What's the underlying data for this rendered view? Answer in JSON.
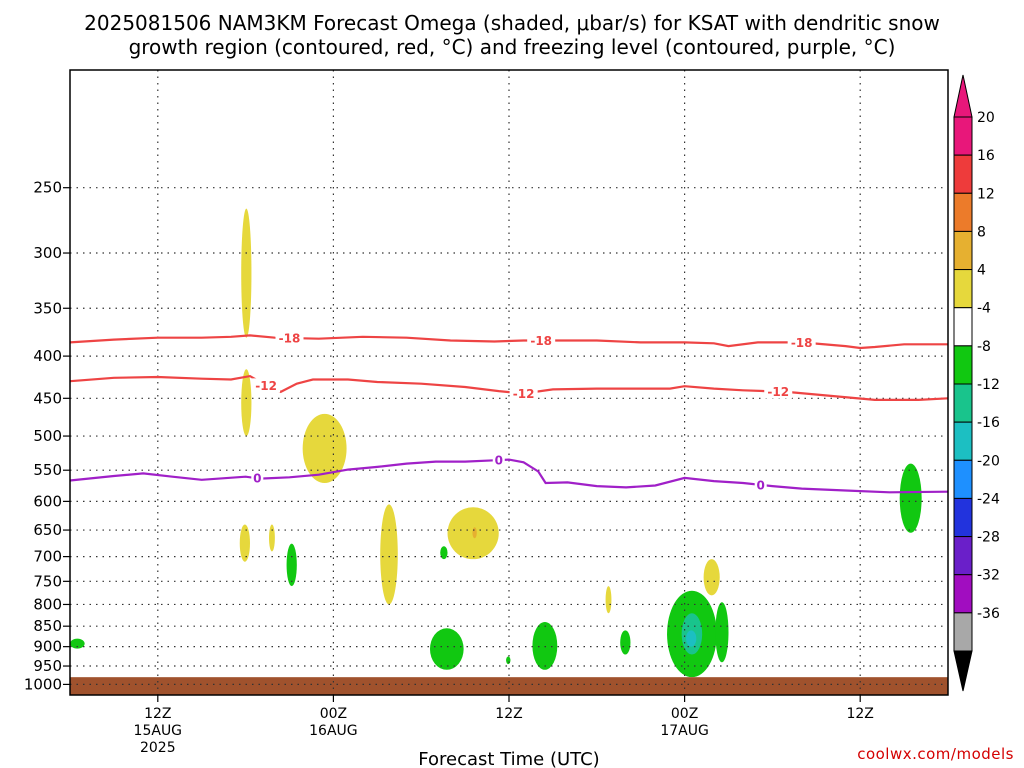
{
  "chart_data": {
    "type": "heatmap",
    "title_line1": "2025081506 NAM3KM Forecast Omega (shaded, μbar/s) for KSAT with dendritic snow",
    "title_line2": "growth region (contoured, red, °C) and freezing level (contoured, purple, °C)",
    "xlabel": "Forecast Time (UTC)",
    "ylabel": "",
    "credit": "coolwx.com/models",
    "x_range_hours": [
      0,
      60
    ],
    "y_axis": {
      "scale": "log-pressure",
      "range_hpa": [
        1030,
        180
      ],
      "ticks": [
        250,
        300,
        350,
        400,
        450,
        500,
        550,
        600,
        650,
        700,
        750,
        800,
        850,
        900,
        950,
        1000
      ],
      "grid": "dotted"
    },
    "x_ticks": [
      {
        "hour": 6,
        "line1": "12Z",
        "line2": "15AUG",
        "line3": "2025"
      },
      {
        "hour": 18,
        "line1": "00Z",
        "line2": "16AUG",
        "line3": ""
      },
      {
        "hour": 30,
        "line1": "12Z",
        "line2": "",
        "line3": ""
      },
      {
        "hour": 42,
        "line1": "00Z",
        "line2": "17AUG",
        "line3": ""
      },
      {
        "hour": 54,
        "line1": "12Z",
        "line2": "",
        "line3": ""
      }
    ],
    "colorbar": {
      "levels": [
        {
          "label": "20",
          "color": "#e8177a"
        },
        {
          "label": "16",
          "color": "#ee3b3b"
        },
        {
          "label": "12",
          "color": "#ec7b2a"
        },
        {
          "label": "8",
          "color": "#e6b030"
        },
        {
          "label": "4",
          "color": "#e6d83c"
        },
        {
          "label": "-4",
          "color": "#ffffff"
        },
        {
          "label": "-8",
          "color": "#11c811"
        },
        {
          "label": "-12",
          "color": "#19c48c"
        },
        {
          "label": "-16",
          "color": "#1cbfc2"
        },
        {
          "label": "-20",
          "color": "#1e90ff"
        },
        {
          "label": "-24",
          "color": "#2233dd"
        },
        {
          "label": "-28",
          "color": "#6a1fc9"
        },
        {
          "label": "-32",
          "color": "#a10dc0"
        },
        {
          "label": "-36",
          "color": "#a8a8a8"
        }
      ],
      "top_arrow_color": "#e8177a",
      "bottom_arrow_color": "#000000"
    },
    "contours": [
      {
        "label": "-18",
        "color": "#ee4444",
        "label_hours": [
          15,
          32.2,
          50
        ],
        "points": [
          [
            0,
            385
          ],
          [
            3,
            382
          ],
          [
            6,
            380
          ],
          [
            9,
            380
          ],
          [
            11,
            379
          ],
          [
            12.3,
            377.5
          ],
          [
            14,
            380
          ],
          [
            17,
            381
          ],
          [
            20,
            379
          ],
          [
            23,
            380
          ],
          [
            26,
            383
          ],
          [
            29,
            384
          ],
          [
            31,
            383
          ],
          [
            33,
            383
          ],
          [
            36,
            383
          ],
          [
            39,
            385
          ],
          [
            42,
            385
          ],
          [
            44,
            386
          ],
          [
            45,
            389
          ],
          [
            47,
            385
          ],
          [
            50,
            385
          ],
          [
            53,
            389
          ],
          [
            54,
            391
          ],
          [
            55,
            390
          ],
          [
            57,
            387
          ],
          [
            60,
            387
          ]
        ]
      },
      {
        "label": "-12",
        "color": "#ee4444",
        "label_hours": [
          13.4,
          31,
          48.4
        ],
        "points": [
          [
            0,
            429
          ],
          [
            3,
            425
          ],
          [
            6,
            424
          ],
          [
            9,
            426
          ],
          [
            11,
            427
          ],
          [
            12.3,
            423
          ],
          [
            13.4,
            434
          ],
          [
            14.4,
            442
          ],
          [
            15.5,
            432
          ],
          [
            16.6,
            427
          ],
          [
            19,
            427
          ],
          [
            21,
            430
          ],
          [
            24,
            432
          ],
          [
            27,
            436
          ],
          [
            29.3,
            441
          ],
          [
            31,
            444
          ],
          [
            33,
            439
          ],
          [
            36,
            438
          ],
          [
            39,
            438
          ],
          [
            41,
            438
          ],
          [
            42,
            435
          ],
          [
            44,
            438
          ],
          [
            46,
            440
          ],
          [
            49,
            442
          ],
          [
            52,
            447
          ],
          [
            55,
            452
          ],
          [
            58,
            452
          ],
          [
            60,
            450
          ]
        ]
      },
      {
        "label": "0",
        "color": "#a020c8",
        "label_hours": [
          12.8,
          29.3,
          47.2
        ],
        "points": [
          [
            0,
            566
          ],
          [
            3,
            559
          ],
          [
            5,
            555
          ],
          [
            7,
            560
          ],
          [
            9,
            565
          ],
          [
            12,
            560
          ],
          [
            13,
            563
          ],
          [
            15,
            561
          ],
          [
            17,
            557
          ],
          [
            19,
            549
          ],
          [
            21,
            545
          ],
          [
            23,
            540
          ],
          [
            25,
            537
          ],
          [
            27,
            537
          ],
          [
            29,
            535
          ],
          [
            30,
            534
          ],
          [
            31,
            538
          ],
          [
            32,
            552
          ],
          [
            32.5,
            570
          ],
          [
            34,
            569
          ],
          [
            36,
            575
          ],
          [
            38,
            577
          ],
          [
            40,
            574
          ],
          [
            42,
            562
          ],
          [
            44,
            567
          ],
          [
            46,
            570
          ],
          [
            48,
            575
          ],
          [
            50,
            579
          ],
          [
            53,
            582
          ],
          [
            56,
            585
          ],
          [
            60,
            584
          ]
        ]
      }
    ],
    "omega_regions": [
      {
        "color": "#e6d83c",
        "hour_range": [
          11.7,
          12.4
        ],
        "p_range": [
          265,
          380
        ]
      },
      {
        "color": "#e6d83c",
        "hour_range": [
          11.7,
          12.4
        ],
        "p_range": [
          415,
          500
        ]
      },
      {
        "color": "#e6d83c",
        "hour_range": [
          15.9,
          18.9
        ],
        "p_range": [
          470,
          570
        ]
      },
      {
        "color": "#e6d83c",
        "hour_range": [
          11.6,
          12.3
        ],
        "p_range": [
          640,
          710
        ]
      },
      {
        "color": "#e6d83c",
        "hour_range": [
          13.6,
          14.0
        ],
        "p_range": [
          640,
          690
        ]
      },
      {
        "color": "#11c811",
        "hour_range": [
          14.8,
          15.5
        ],
        "p_range": [
          675,
          760
        ]
      },
      {
        "color": "#e6d83c",
        "hour_range": [
          21.2,
          22.4
        ],
        "p_range": [
          605,
          800
        ]
      },
      {
        "color": "#e6d83c",
        "hour_range": [
          25.8,
          29.3
        ],
        "p_range": [
          610,
          705
        ]
      },
      {
        "color": "#e6b030",
        "hour_range": [
          27.5,
          27.8
        ],
        "p_range": [
          645,
          665
        ]
      },
      {
        "color": "#11c811",
        "hour_range": [
          25.3,
          25.8
        ],
        "p_range": [
          680,
          705
        ]
      },
      {
        "color": "#11c811",
        "hour_range": [
          24.6,
          26.9
        ],
        "p_range": [
          855,
          960
        ]
      },
      {
        "color": "#11c811",
        "hour_range": [
          29.8,
          30.1
        ],
        "p_range": [
          925,
          945
        ]
      },
      {
        "color": "#11c811",
        "hour_range": [
          31.6,
          33.3
        ],
        "p_range": [
          840,
          960
        ]
      },
      {
        "color": "#e6d83c",
        "hour_range": [
          36.6,
          37.0
        ],
        "p_range": [
          760,
          820
        ]
      },
      {
        "color": "#11c811",
        "hour_range": [
          37.6,
          38.3
        ],
        "p_range": [
          860,
          920
        ]
      },
      {
        "color": "#11c811",
        "hour_range": [
          40.8,
          44.2
        ],
        "p_range": [
          770,
          980
        ]
      },
      {
        "color": "#19c48c",
        "hour_range": [
          41.8,
          43.2
        ],
        "p_range": [
          820,
          920
        ]
      },
      {
        "color": "#1cbfc2",
        "hour_range": [
          42.1,
          42.8
        ],
        "p_range": [
          860,
          900
        ]
      },
      {
        "color": "#11c811",
        "hour_range": [
          44.1,
          45.0
        ],
        "p_range": [
          795,
          940
        ]
      },
      {
        "color": "#e6d83c",
        "hour_range": [
          43.3,
          44.4
        ],
        "p_range": [
          705,
          780
        ]
      },
      {
        "color": "#11c811",
        "hour_range": [
          56.7,
          58.2
        ],
        "p_range": [
          540,
          655
        ]
      },
      {
        "color": "#11c811",
        "hour_range": [
          0,
          1.0
        ],
        "p_range": [
          880,
          905
        ]
      }
    ],
    "terrain": {
      "color": "#a0522d",
      "p_top": 980
    }
  }
}
